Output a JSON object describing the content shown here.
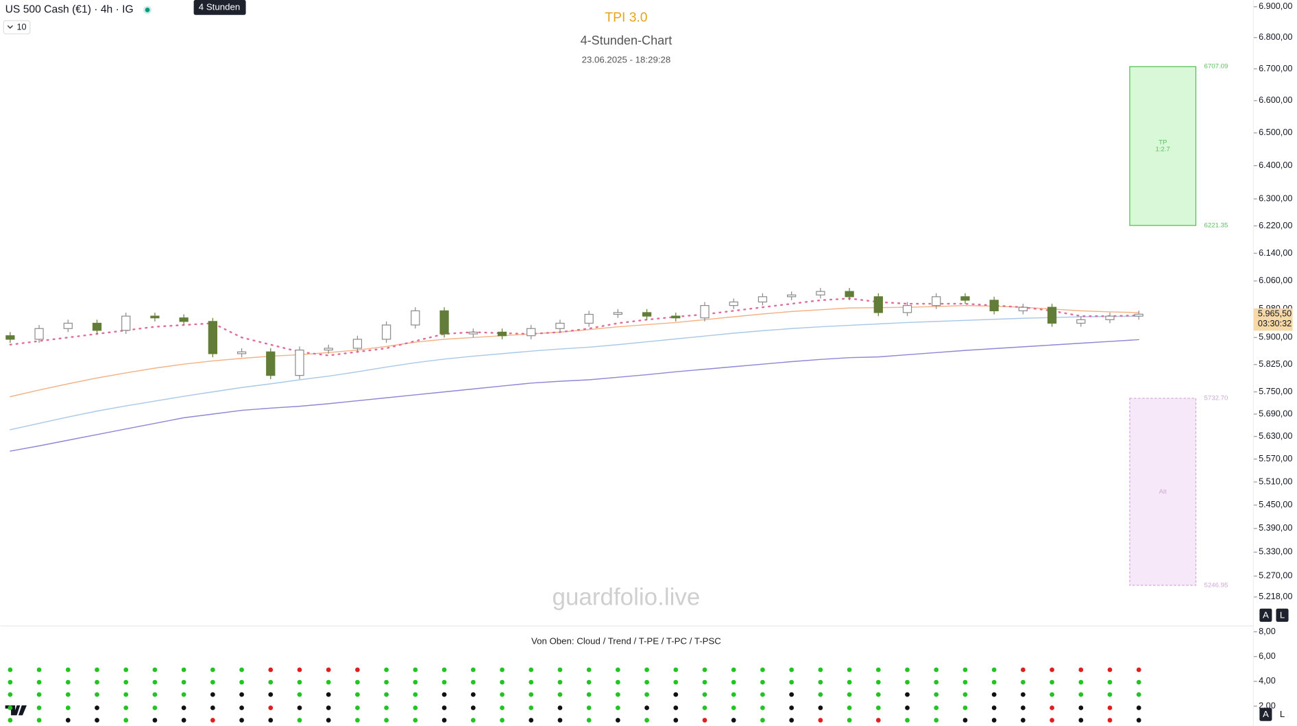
{
  "toolbar": {
    "symbol": "US 500 Cash (€1) · 4h · IG",
    "tooltip": "4 Stunden",
    "interval_count": "10",
    "buttons": [
      "A",
      "L"
    ]
  },
  "chart_data": [
    {
      "type": "candlestick",
      "title": "TPI 3.0",
      "subtitle": "4-Stunden-Chart",
      "timestamp": "23.06.2025 - 18:29:28",
      "watermark": "guardfolio.live",
      "log_scale": true,
      "ylim": [
        5149,
        6922
      ],
      "yticks": [
        {
          "value": 6900,
          "label": "6.900,00"
        },
        {
          "value": 6800,
          "label": "6.800,00"
        },
        {
          "value": 6700,
          "label": "6.700,00"
        },
        {
          "value": 6600,
          "label": "6.600,00"
        },
        {
          "value": 6500,
          "label": "6.500,00"
        },
        {
          "value": 6400,
          "label": "6.400,00"
        },
        {
          "value": 6300,
          "label": "6.300,00"
        },
        {
          "value": 6220,
          "label": "6.220,00"
        },
        {
          "value": 6140,
          "label": "6.140,00"
        },
        {
          "value": 6060,
          "label": "6.060,00"
        },
        {
          "value": 5980,
          "label": "5.980,00"
        },
        {
          "value": 5900,
          "label": "5.900,00"
        },
        {
          "value": 5825,
          "label": "5.825,00"
        },
        {
          "value": 5750,
          "label": "5.750,00"
        },
        {
          "value": 5690,
          "label": "5.690,00"
        },
        {
          "value": 5630,
          "label": "5.630,00"
        },
        {
          "value": 5570,
          "label": "5.570,00"
        },
        {
          "value": 5510,
          "label": "5.510,00"
        },
        {
          "value": 5450,
          "label": "5.450,00"
        },
        {
          "value": 5390,
          "label": "5.390,00"
        },
        {
          "value": 5330,
          "label": "5.330,00"
        },
        {
          "value": 5270,
          "label": "5.270,00"
        },
        {
          "value": 5218,
          "label": "5.218,00"
        }
      ],
      "up_color": "#ffffff",
      "up_border": "#8a8a8a",
      "down_color": "#627d38",
      "open": [
        5905,
        5895,
        5925,
        5940,
        5920,
        5960,
        5955,
        5945,
        5855,
        5860,
        5795,
        5865,
        5870,
        5895,
        5935,
        5975,
        5910,
        5915,
        5905,
        5925,
        5940,
        5965,
        5970,
        5960,
        5955,
        5990,
        6000,
        6015,
        6020,
        6030,
        6015,
        5970,
        5990,
        6015,
        6005,
        5975,
        5985,
        5940,
        5950,
        5960
      ],
      "high": [
        5915,
        5935,
        5950,
        5950,
        5970,
        5970,
        5965,
        5955,
        5870,
        5870,
        5875,
        5880,
        5905,
        5945,
        5985,
        5985,
        5925,
        5925,
        5935,
        5950,
        5975,
        5980,
        5980,
        5970,
        6000,
        6010,
        6025,
        6030,
        6040,
        6040,
        6025,
        6000,
        6025,
        6025,
        6015,
        5995,
        5995,
        5960,
        5970,
        5975.5
      ],
      "low": [
        5885,
        5885,
        5915,
        5910,
        5910,
        5945,
        5935,
        5845,
        5845,
        5785,
        5785,
        5855,
        5860,
        5885,
        5925,
        5900,
        5900,
        5895,
        5895,
        5915,
        5930,
        5955,
        5950,
        5945,
        5945,
        5980,
        5990,
        6005,
        6010,
        6005,
        5960,
        5960,
        5980,
        5995,
        5965,
        5965,
        5930,
        5930,
        5940,
        5950
      ],
      "close": [
        5895,
        5925,
        5940,
        5920,
        5960,
        5955,
        5945,
        5855,
        5860,
        5795,
        5865,
        5870,
        5895,
        5935,
        5975,
        5910,
        5915,
        5905,
        5925,
        5940,
        5965,
        5970,
        5960,
        5955,
        5990,
        6000,
        6015,
        6020,
        6030,
        6015,
        5970,
        5990,
        6015,
        6005,
        5975,
        5985,
        5940,
        5950,
        5960,
        5965.5
      ],
      "lines": [
        {
          "color": "#f4b183",
          "values": [
            5737,
            5755,
            5772,
            5788,
            5802,
            5815,
            5826,
            5835,
            5842,
            5848,
            5852,
            5858,
            5865,
            5875,
            5887,
            5895,
            5900,
            5905,
            5910,
            5915,
            5922,
            5930,
            5936,
            5942,
            5950,
            5958,
            5966,
            5973,
            5978,
            5983,
            5984,
            5985,
            5987,
            5990,
            5988,
            5985,
            5980,
            5975,
            5972,
            5970
          ]
        },
        {
          "color": "#a9c8e8",
          "values": [
            5648,
            5665,
            5682,
            5698,
            5712,
            5725,
            5738,
            5750,
            5762,
            5772,
            5783,
            5793,
            5805,
            5818,
            5830,
            5840,
            5848,
            5855,
            5862,
            5868,
            5873,
            5880,
            5888,
            5896,
            5904,
            5912,
            5919,
            5925,
            5930,
            5934,
            5938,
            5942,
            5945,
            5948,
            5951,
            5954,
            5956,
            5958,
            5959,
            5960
          ]
        },
        {
          "color": "#8e86d6",
          "values": [
            5591,
            5605,
            5620,
            5635,
            5650,
            5665,
            5680,
            5690,
            5700,
            5706,
            5711,
            5718,
            5726,
            5734,
            5742,
            5750,
            5758,
            5766,
            5774,
            5779,
            5783,
            5790,
            5797,
            5805,
            5812,
            5819,
            5826,
            5833,
            5839,
            5844,
            5846,
            5852,
            5858,
            5864,
            5869,
            5874,
            5879,
            5884,
            5889,
            5894
          ]
        },
        {
          "color": "#e06a9a",
          "dotted": true,
          "values": [
            5880,
            5890,
            5900,
            5910,
            5920,
            5930,
            5935,
            5940,
            5900,
            5880,
            5860,
            5850,
            5860,
            5870,
            5890,
            5910,
            5915,
            5912,
            5910,
            5915,
            5925,
            5940,
            5950,
            5958,
            5965,
            5975,
            5985,
            5995,
            6005,
            6010,
            6000,
            5995,
            5995,
            5995,
            5990,
            5985,
            5975,
            5960,
            5960,
            5962
          ]
        }
      ],
      "positions": [
        {
          "top": 6707.09,
          "bottom": 6221.35,
          "top_label": "6707.09",
          "bottom_label": "6221.35",
          "label": "TP",
          "ratio": "1:2.7",
          "fill": "#d8f8d8",
          "stroke": "#4cbb4c",
          "text_color": "#5cbf5c"
        },
        {
          "top": 5732.7,
          "bottom": 5246.95,
          "top_label": "5732.70",
          "bottom_label": "5246.95",
          "label": "Alt",
          "fill": "#f6e8f8",
          "stroke": "#d0a8d8",
          "text_color": "#d0a8d8",
          "dashed": true
        }
      ],
      "last_price": {
        "value": 5965.5,
        "label": "5.965,50"
      },
      "countdown": "03:30:32"
    },
    {
      "type": "dots",
      "title": "Von Oben: Cloud / Trend / T-PE / T-PC / T-PSC",
      "ylim": [
        0.4,
        8.47
      ],
      "yticks": [
        {
          "value": 8,
          "label": "8,00"
        },
        {
          "value": 6,
          "label": "6,00"
        },
        {
          "value": 4,
          "label": "4,00"
        },
        {
          "value": 2,
          "label": "2,00"
        }
      ],
      "state_colors": {
        "1": "#22c322",
        "-1": "#dd1f1f",
        "0": "#111111"
      },
      "rows": [
        [
          1,
          1,
          1,
          1,
          1,
          1,
          1,
          1,
          1,
          -1,
          -1,
          -1,
          -1,
          1,
          1,
          1,
          1,
          1,
          1,
          1,
          1,
          1,
          1,
          1,
          1,
          1,
          1,
          1,
          1,
          1,
          1,
          1,
          1,
          1,
          1,
          -1,
          -1,
          -1,
          -1,
          -1
        ],
        [
          1,
          1,
          1,
          1,
          1,
          1,
          1,
          1,
          1,
          1,
          1,
          1,
          1,
          1,
          1,
          1,
          1,
          1,
          1,
          1,
          1,
          1,
          1,
          1,
          1,
          1,
          1,
          1,
          1,
          1,
          1,
          1,
          1,
          1,
          1,
          1,
          1,
          1,
          1,
          1
        ],
        [
          1,
          1,
          1,
          1,
          1,
          1,
          1,
          0,
          0,
          0,
          1,
          0,
          1,
          1,
          1,
          0,
          0,
          1,
          1,
          1,
          1,
          1,
          1,
          0,
          1,
          1,
          1,
          0,
          1,
          1,
          1,
          0,
          1,
          1,
          0,
          0,
          1,
          1,
          1,
          1
        ],
        [
          1,
          1,
          1,
          0,
          1,
          1,
          0,
          0,
          0,
          -1,
          0,
          0,
          1,
          1,
          1,
          0,
          0,
          1,
          1,
          0,
          1,
          1,
          0,
          0,
          1,
          1,
          1,
          0,
          0,
          1,
          1,
          0,
          1,
          1,
          0,
          0,
          -1,
          0,
          -1,
          0
        ],
        [
          1,
          1,
          0,
          0,
          1,
          0,
          0,
          -1,
          0,
          0,
          1,
          0,
          1,
          1,
          1,
          0,
          1,
          1,
          0,
          0,
          1,
          0,
          1,
          0,
          -1,
          0,
          1,
          0,
          -1,
          1,
          -1,
          1,
          1,
          0,
          0,
          0,
          -1,
          0,
          -1,
          0
        ]
      ]
    }
  ]
}
